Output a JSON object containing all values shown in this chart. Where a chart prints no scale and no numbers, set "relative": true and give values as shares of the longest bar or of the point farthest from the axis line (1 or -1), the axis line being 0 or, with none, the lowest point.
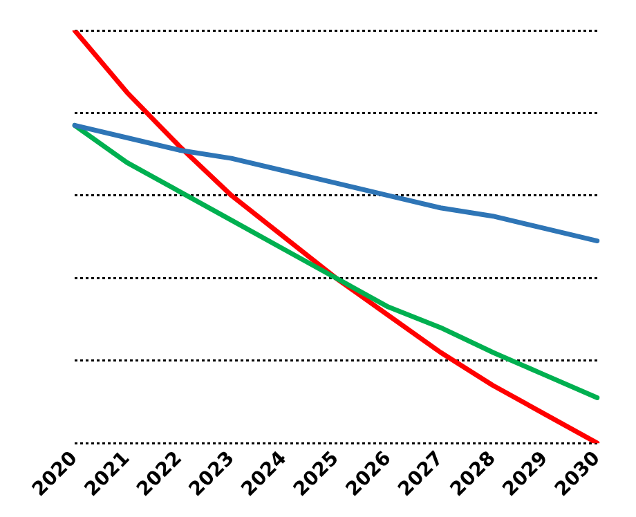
{
  "chart_data": {
    "type": "line",
    "relative": true,
    "grid": "y",
    "line_style": "solid",
    "marker": "none",
    "categories": [
      "2020",
      "2021",
      "2022",
      "2023",
      "2024",
      "2025",
      "2026",
      "2027",
      "2028",
      "2029",
      "2030"
    ],
    "series": [
      {
        "color": "#2e75b6",
        "values": [
          0.77,
          0.74,
          0.71,
          0.69,
          0.66,
          0.63,
          0.6,
          0.57,
          0.55,
          0.52,
          0.49
        ]
      },
      {
        "color": "#00b050",
        "values": [
          0.77,
          0.68,
          0.61,
          0.54,
          0.47,
          0.4,
          0.33,
          0.28,
          0.22,
          0.165,
          0.11
        ]
      },
      {
        "color": "#ff0000",
        "values": [
          1,
          0.85,
          0.72,
          0.6,
          0.5,
          0.4,
          0.31,
          0.22,
          0.14,
          0.07,
          0
        ]
      }
    ]
  }
}
